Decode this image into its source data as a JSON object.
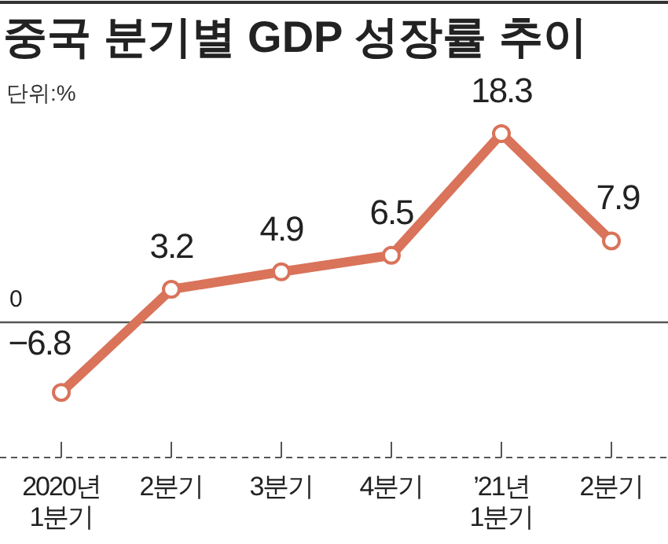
{
  "chart_data": {
    "type": "line",
    "title": "중국 분기별 GDP 성장률 추이",
    "annotations": [
      "단위:%"
    ],
    "categories": [
      "2020년\n1분기",
      "2분기",
      "3분기",
      "4분기",
      "’21년\n1분기",
      "2분기"
    ],
    "series": [
      {
        "color": "#d9735a",
        "values": [
          -6.8,
          3.2,
          4.9,
          6.5,
          18.3,
          7.9
        ]
      }
    ],
    "ref_lines": [
      {
        "axis": "y",
        "value": 0,
        "label": "0"
      }
    ],
    "data_labels": true,
    "marker": "circle"
  }
}
